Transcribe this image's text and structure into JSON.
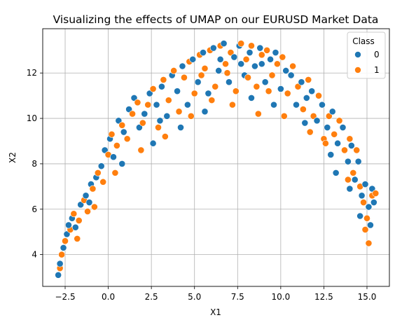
{
  "chart_data": {
    "type": "scatter",
    "title": "Visualizing the effects of UMAP on our EURUSD Market Data",
    "xlabel": "X1",
    "ylabel": "X2",
    "xlim": [
      -3.8,
      16.3
    ],
    "ylim": [
      2.6,
      13.95
    ],
    "xticks": [
      -2.5,
      0.0,
      2.5,
      5.0,
      7.5,
      10.0,
      12.5,
      15.0
    ],
    "xtick_labels": [
      "−2.5",
      "0.0",
      "2.5",
      "5.0",
      "7.5",
      "10.0",
      "12.5",
      "15.0"
    ],
    "yticks": [
      4,
      6,
      8,
      10,
      12
    ],
    "ytick_labels": [
      "4",
      "6",
      "8",
      "10",
      "12"
    ],
    "grid": true,
    "legend": {
      "title": "Class",
      "placement": "top-right"
    },
    "colors": {
      "class_0": "#1f77b4",
      "class_1": "#ff7f0e",
      "marker_edge": "#ffffff",
      "grid": "#b0b0b0"
    },
    "series": [
      {
        "name": "0",
        "color": "#1f77b4",
        "points": [
          [
            -2.9,
            3.1
          ],
          [
            -2.8,
            3.6
          ],
          [
            -2.6,
            4.3
          ],
          [
            -2.4,
            4.9
          ],
          [
            -2.1,
            5.6
          ],
          [
            -1.9,
            5.2
          ],
          [
            -1.6,
            6.2
          ],
          [
            -1.3,
            6.6
          ],
          [
            -1.0,
            7.1
          ],
          [
            -0.7,
            7.4
          ],
          [
            -0.4,
            7.9
          ],
          [
            -0.2,
            8.6
          ],
          [
            0.1,
            9.1
          ],
          [
            0.3,
            8.3
          ],
          [
            0.6,
            9.9
          ],
          [
            0.9,
            9.4
          ],
          [
            1.2,
            10.4
          ],
          [
            1.5,
            10.9
          ],
          [
            1.8,
            9.6
          ],
          [
            2.1,
            10.2
          ],
          [
            2.4,
            11.1
          ],
          [
            2.8,
            10.6
          ],
          [
            3.1,
            11.4
          ],
          [
            3.4,
            10.1
          ],
          [
            3.7,
            11.9
          ],
          [
            4.0,
            11.2
          ],
          [
            4.3,
            12.3
          ],
          [
            4.6,
            10.6
          ],
          [
            4.9,
            12.6
          ],
          [
            5.2,
            11.6
          ],
          [
            5.5,
            12.9
          ],
          [
            5.8,
            11.1
          ],
          [
            6.1,
            13.1
          ],
          [
            6.4,
            12.1
          ],
          [
            6.7,
            13.3
          ],
          [
            7.0,
            11.6
          ],
          [
            7.3,
            12.7
          ],
          [
            7.6,
            13.2
          ],
          [
            7.9,
            11.9
          ],
          [
            8.2,
            12.9
          ],
          [
            8.5,
            12.3
          ],
          [
            8.8,
            13.1
          ],
          [
            9.1,
            11.6
          ],
          [
            9.4,
            12.6
          ],
          [
            9.7,
            12.9
          ],
          [
            10.0,
            11.3
          ],
          [
            10.3,
            12.1
          ],
          [
            10.6,
            11.9
          ],
          [
            10.9,
            10.6
          ],
          [
            11.2,
            11.6
          ],
          [
            11.5,
            10.9
          ],
          [
            11.8,
            11.2
          ],
          [
            12.1,
            9.9
          ],
          [
            12.4,
            10.6
          ],
          [
            12.7,
            9.6
          ],
          [
            13.0,
            10.3
          ],
          [
            13.3,
            8.9
          ],
          [
            13.6,
            9.6
          ],
          [
            13.9,
            8.1
          ],
          [
            14.1,
            8.8
          ],
          [
            14.3,
            7.3
          ],
          [
            14.5,
            8.1
          ],
          [
            14.7,
            6.6
          ],
          [
            14.9,
            7.1
          ],
          [
            15.1,
            6.1
          ],
          [
            15.2,
            5.3
          ],
          [
            15.3,
            6.9
          ],
          [
            15.4,
            6.3
          ],
          [
            14.6,
            5.7
          ],
          [
            14.0,
            6.9
          ],
          [
            -2.3,
            5.3
          ],
          [
            -1.1,
            6.3
          ],
          [
            0.8,
            8.0
          ],
          [
            2.6,
            8.9
          ],
          [
            4.2,
            9.6
          ],
          [
            5.6,
            10.3
          ],
          [
            8.3,
            10.9
          ],
          [
            9.6,
            10.6
          ],
          [
            11.4,
            9.8
          ],
          [
            13.2,
            7.6
          ],
          [
            6.5,
            12.6
          ],
          [
            7.7,
            12.4
          ],
          [
            8.9,
            12.4
          ],
          [
            3.0,
            9.9
          ],
          [
            12.9,
            8.4
          ]
        ]
      },
      {
        "name": "1",
        "color": "#ff7f0e",
        "points": [
          [
            -2.8,
            3.4
          ],
          [
            -2.7,
            4.0
          ],
          [
            -2.5,
            4.6
          ],
          [
            -2.2,
            5.1
          ],
          [
            -2.0,
            5.8
          ],
          [
            -1.7,
            5.5
          ],
          [
            -1.4,
            6.4
          ],
          [
            -1.2,
            5.9
          ],
          [
            -0.9,
            6.9
          ],
          [
            -0.6,
            7.6
          ],
          [
            -0.3,
            7.2
          ],
          [
            0.0,
            8.4
          ],
          [
            0.2,
            9.3
          ],
          [
            0.5,
            8.8
          ],
          [
            0.8,
            9.7
          ],
          [
            1.1,
            9.1
          ],
          [
            1.4,
            10.2
          ],
          [
            1.7,
            10.7
          ],
          [
            2.0,
            9.8
          ],
          [
            2.3,
            10.6
          ],
          [
            2.6,
            11.3
          ],
          [
            2.9,
            9.6
          ],
          [
            3.2,
            11.7
          ],
          [
            3.5,
            10.8
          ],
          [
            3.8,
            12.1
          ],
          [
            4.1,
            10.3
          ],
          [
            4.4,
            11.8
          ],
          [
            4.7,
            12.5
          ],
          [
            5.0,
            11.1
          ],
          [
            5.3,
            12.8
          ],
          [
            5.6,
            12.2
          ],
          [
            5.9,
            13.0
          ],
          [
            6.2,
            11.4
          ],
          [
            6.5,
            13.2
          ],
          [
            6.8,
            12.4
          ],
          [
            7.1,
            12.9
          ],
          [
            7.4,
            11.2
          ],
          [
            7.7,
            13.3
          ],
          [
            8.0,
            12.6
          ],
          [
            8.3,
            13.2
          ],
          [
            8.6,
            11.4
          ],
          [
            8.9,
            12.8
          ],
          [
            9.2,
            13.0
          ],
          [
            9.5,
            11.9
          ],
          [
            9.8,
            12.4
          ],
          [
            10.1,
            12.7
          ],
          [
            10.4,
            11.1
          ],
          [
            10.7,
            12.3
          ],
          [
            11.0,
            11.4
          ],
          [
            11.3,
            10.4
          ],
          [
            11.6,
            11.7
          ],
          [
            11.9,
            10.1
          ],
          [
            12.2,
            11.0
          ],
          [
            12.5,
            9.1
          ],
          [
            12.8,
            10.1
          ],
          [
            13.1,
            9.3
          ],
          [
            13.4,
            9.9
          ],
          [
            13.7,
            8.6
          ],
          [
            14.0,
            9.1
          ],
          [
            14.2,
            7.6
          ],
          [
            14.4,
            8.6
          ],
          [
            14.6,
            7.0
          ],
          [
            14.8,
            6.3
          ],
          [
            15.0,
            5.6
          ],
          [
            15.1,
            4.5
          ],
          [
            15.3,
            6.6
          ],
          [
            15.5,
            6.7
          ],
          [
            14.9,
            5.1
          ],
          [
            13.9,
            7.3
          ],
          [
            -1.8,
            4.7
          ],
          [
            -0.8,
            6.1
          ],
          [
            0.4,
            7.6
          ],
          [
            1.9,
            8.6
          ],
          [
            3.3,
            9.2
          ],
          [
            4.8,
            10.1
          ],
          [
            6.0,
            10.8
          ],
          [
            7.2,
            10.6
          ],
          [
            8.7,
            10.2
          ],
          [
            10.2,
            10.1
          ],
          [
            11.7,
            9.4
          ],
          [
            12.6,
            8.9
          ],
          [
            6.9,
            12.0
          ],
          [
            8.1,
            11.8
          ],
          [
            9.3,
            11.2
          ],
          [
            5.4,
            11.9
          ]
        ]
      }
    ]
  }
}
